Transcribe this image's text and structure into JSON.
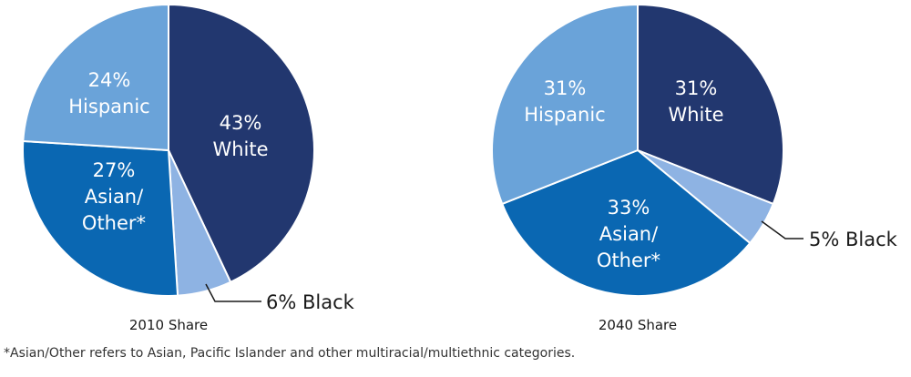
{
  "chart_data": [
    {
      "type": "pie",
      "title": "2010 Share",
      "slices": [
        {
          "label": "White",
          "value": 43,
          "pct_label": "43%",
          "color": "#22376f"
        },
        {
          "label": "Black",
          "value": 6,
          "pct_label": "6%",
          "color": "#8eb3e3"
        },
        {
          "label": "Asian/ Other*",
          "value": 27,
          "pct_label": "27%",
          "color": "#0a67b2"
        },
        {
          "label": "Hispanic",
          "value": 24,
          "pct_label": "24%",
          "color": "#6aa3d9"
        }
      ]
    },
    {
      "type": "pie",
      "title": "2040 Share",
      "slices": [
        {
          "label": "White",
          "value": 31,
          "pct_label": "31%",
          "color": "#22376f"
        },
        {
          "label": "Black",
          "value": 5,
          "pct_label": "5%",
          "color": "#8eb3e3"
        },
        {
          "label": "Asian/ Other*",
          "value": 33,
          "pct_label": "33%",
          "color": "#0a67b2"
        },
        {
          "label": "Hispanic",
          "value": 31,
          "pct_label": "31%",
          "color": "#6aa3d9"
        }
      ]
    }
  ],
  "footnote": "*Asian/Other refers to Asian, Pacific Islander and other multiracial/multiethnic categories."
}
